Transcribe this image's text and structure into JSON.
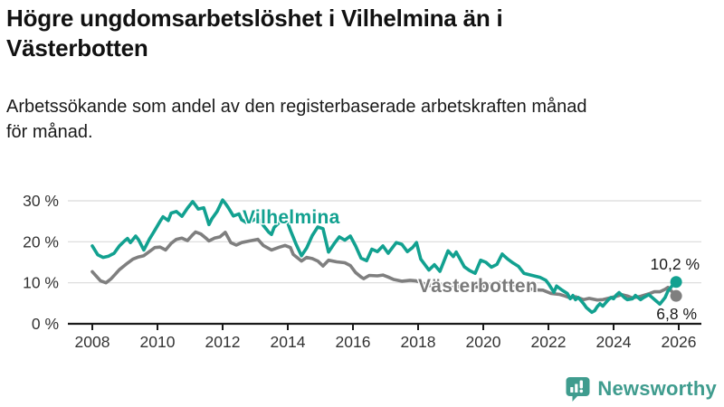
{
  "header": {
    "title_lines": [
      "Högre ungdomsarbetslöshet i Vilhelmina än i",
      "Västerbotten"
    ],
    "subtitle_lines": [
      "Arbetssökande som andel av den registerbaserade arbetskraften månad",
      "för månad."
    ]
  },
  "footer": {
    "brand": "Newsworthy",
    "brand_color": "#3f9c8e"
  },
  "chart_data": {
    "type": "line",
    "title": "Högre ungdomsarbetslöshet i Vilhelmina än i Västerbotten",
    "subtitle": "Arbetssökande som andel av den registerbaserade arbetskraften månad för månad.",
    "xlabel": "",
    "ylabel": "",
    "x_unit": "year",
    "y_unit": "%",
    "xlim": [
      2007.25,
      2026.7
    ],
    "ylim": [
      0,
      30
    ],
    "grid": "horizontal",
    "y_ticks": [
      {
        "value": 0,
        "label": "0 %"
      },
      {
        "value": 10,
        "label": "10 %"
      },
      {
        "value": 20,
        "label": "20 %"
      },
      {
        "value": 30,
        "label": "30 %"
      }
    ],
    "x_ticks": [
      {
        "value": 2008,
        "label": "2008"
      },
      {
        "value": 2010,
        "label": "2010"
      },
      {
        "value": 2012,
        "label": "2012"
      },
      {
        "value": 2014,
        "label": "2014"
      },
      {
        "value": 2016,
        "label": "2016"
      },
      {
        "value": 2018,
        "label": "2018"
      },
      {
        "value": 2020,
        "label": "2020"
      },
      {
        "value": 2022,
        "label": "2022"
      },
      {
        "value": 2024,
        "label": "2024"
      },
      {
        "value": 2026,
        "label": "2026"
      }
    ],
    "series": [
      {
        "id": "vasterbotten",
        "name": "Västerbotten",
        "color": "#7f7f7f",
        "label_color": "#7a7a7a",
        "end_label": "6,8 %",
        "end_value": 6.8,
        "points": [
          [
            2008.0,
            12.7
          ],
          [
            2008.25,
            10.5
          ],
          [
            2008.42,
            10.0
          ],
          [
            2008.58,
            11.0
          ],
          [
            2008.83,
            13.2
          ],
          [
            2009.08,
            14.8
          ],
          [
            2009.25,
            15.8
          ],
          [
            2009.42,
            16.3
          ],
          [
            2009.58,
            16.6
          ],
          [
            2009.75,
            17.6
          ],
          [
            2009.92,
            18.6
          ],
          [
            2010.08,
            18.7
          ],
          [
            2010.25,
            18.0
          ],
          [
            2010.42,
            19.6
          ],
          [
            2010.58,
            20.6
          ],
          [
            2010.75,
            20.9
          ],
          [
            2010.92,
            20.3
          ],
          [
            2011.08,
            21.7
          ],
          [
            2011.17,
            22.4
          ],
          [
            2011.33,
            21.9
          ],
          [
            2011.5,
            20.8
          ],
          [
            2011.58,
            20.2
          ],
          [
            2011.75,
            20.9
          ],
          [
            2011.92,
            21.2
          ],
          [
            2012.08,
            22.3
          ],
          [
            2012.25,
            19.8
          ],
          [
            2012.42,
            19.2
          ],
          [
            2012.58,
            19.8
          ],
          [
            2012.83,
            20.2
          ],
          [
            2013.08,
            20.6
          ],
          [
            2013.25,
            19.1
          ],
          [
            2013.5,
            18.0
          ],
          [
            2013.75,
            18.7
          ],
          [
            2013.92,
            19.1
          ],
          [
            2014.08,
            18.6
          ],
          [
            2014.17,
            16.9
          ],
          [
            2014.42,
            15.3
          ],
          [
            2014.58,
            16.2
          ],
          [
            2014.75,
            15.9
          ],
          [
            2014.92,
            15.3
          ],
          [
            2015.08,
            14.1
          ],
          [
            2015.25,
            15.5
          ],
          [
            2015.5,
            15.1
          ],
          [
            2015.75,
            14.9
          ],
          [
            2015.92,
            14.2
          ],
          [
            2016.08,
            12.5
          ],
          [
            2016.25,
            11.4
          ],
          [
            2016.33,
            11.0
          ],
          [
            2016.5,
            11.8
          ],
          [
            2016.75,
            11.7
          ],
          [
            2016.92,
            11.9
          ],
          [
            2017.08,
            11.4
          ],
          [
            2017.25,
            10.8
          ],
          [
            2017.5,
            10.4
          ],
          [
            2017.75,
            10.6
          ],
          [
            2017.92,
            10.5
          ],
          [
            2018.08,
            10.1
          ],
          [
            2018.33,
            9.3
          ],
          [
            2018.58,
            9.7
          ],
          [
            2018.83,
            9.5
          ],
          [
            2019.08,
            9.3
          ],
          [
            2019.33,
            8.9
          ],
          [
            2019.58,
            8.8
          ],
          [
            2019.83,
            9.0
          ],
          [
            2020.08,
            9.3
          ],
          [
            2020.33,
            9.9
          ],
          [
            2020.58,
            10.1
          ],
          [
            2020.83,
            9.7
          ],
          [
            2021.08,
            9.2
          ],
          [
            2021.33,
            8.7
          ],
          [
            2021.58,
            8.3
          ],
          [
            2021.83,
            8.2
          ],
          [
            2022.08,
            7.4
          ],
          [
            2022.33,
            7.2
          ],
          [
            2022.5,
            6.8
          ],
          [
            2022.67,
            6.3
          ],
          [
            2022.83,
            6.6
          ],
          [
            2023.08,
            5.9
          ],
          [
            2023.25,
            6.2
          ],
          [
            2023.5,
            5.8
          ],
          [
            2023.67,
            5.9
          ],
          [
            2023.83,
            6.2
          ],
          [
            2024.08,
            6.7
          ],
          [
            2024.25,
            7.1
          ],
          [
            2024.42,
            6.8
          ],
          [
            2024.58,
            6.3
          ],
          [
            2024.83,
            6.7
          ],
          [
            2025.08,
            7.3
          ],
          [
            2025.25,
            7.8
          ],
          [
            2025.42,
            7.8
          ],
          [
            2025.58,
            8.4
          ],
          [
            2025.67,
            8.9
          ],
          [
            2025.92,
            6.8
          ]
        ]
      },
      {
        "id": "vilhelmina",
        "name": "Vilhelmina",
        "color": "#12a190",
        "label_color": "#12a190",
        "end_label": "10,2 %",
        "end_value": 10.2,
        "points": [
          [
            2008.0,
            19.0
          ],
          [
            2008.17,
            16.8
          ],
          [
            2008.33,
            16.2
          ],
          [
            2008.5,
            16.5
          ],
          [
            2008.67,
            17.2
          ],
          [
            2008.83,
            19.0
          ],
          [
            2009.0,
            20.3
          ],
          [
            2009.08,
            20.8
          ],
          [
            2009.17,
            19.8
          ],
          [
            2009.33,
            21.4
          ],
          [
            2009.42,
            20.5
          ],
          [
            2009.58,
            18.0
          ],
          [
            2009.75,
            20.6
          ],
          [
            2009.92,
            22.8
          ],
          [
            2010.08,
            25.0
          ],
          [
            2010.17,
            26.1
          ],
          [
            2010.33,
            25.2
          ],
          [
            2010.42,
            27.0
          ],
          [
            2010.58,
            27.4
          ],
          [
            2010.75,
            26.2
          ],
          [
            2010.92,
            28.2
          ],
          [
            2011.08,
            29.8
          ],
          [
            2011.17,
            28.9
          ],
          [
            2011.25,
            28.0
          ],
          [
            2011.42,
            28.3
          ],
          [
            2011.5,
            26.3
          ],
          [
            2011.58,
            24.2
          ],
          [
            2011.67,
            25.6
          ],
          [
            2011.83,
            27.4
          ],
          [
            2012.0,
            30.2
          ],
          [
            2012.08,
            29.4
          ],
          [
            2012.17,
            28.4
          ],
          [
            2012.33,
            26.3
          ],
          [
            2012.5,
            26.8
          ],
          [
            2012.58,
            25.4
          ],
          [
            2012.75,
            24.6
          ],
          [
            2012.92,
            25.2
          ],
          [
            2013.08,
            25.8
          ],
          [
            2013.25,
            24.0
          ],
          [
            2013.42,
            22.3
          ],
          [
            2013.5,
            21.8
          ],
          [
            2013.58,
            23.5
          ],
          [
            2013.75,
            24.8
          ],
          [
            2013.92,
            25.4
          ],
          [
            2014.0,
            24.6
          ],
          [
            2014.08,
            22.8
          ],
          [
            2014.25,
            19.5
          ],
          [
            2014.42,
            16.6
          ],
          [
            2014.58,
            18.5
          ],
          [
            2014.75,
            21.5
          ],
          [
            2014.92,
            23.6
          ],
          [
            2015.08,
            23.2
          ],
          [
            2015.25,
            17.5
          ],
          [
            2015.42,
            19.5
          ],
          [
            2015.58,
            21.2
          ],
          [
            2015.75,
            20.4
          ],
          [
            2015.92,
            21.4
          ],
          [
            2016.08,
            19.0
          ],
          [
            2016.25,
            16.0
          ],
          [
            2016.42,
            15.4
          ],
          [
            2016.58,
            18.2
          ],
          [
            2016.75,
            17.6
          ],
          [
            2016.92,
            19.0
          ],
          [
            2017.08,
            17.2
          ],
          [
            2017.33,
            19.8
          ],
          [
            2017.5,
            19.4
          ],
          [
            2017.67,
            17.6
          ],
          [
            2017.83,
            18.6
          ],
          [
            2017.95,
            19.8
          ],
          [
            2018.08,
            15.8
          ],
          [
            2018.33,
            13.1
          ],
          [
            2018.5,
            14.4
          ],
          [
            2018.67,
            12.8
          ],
          [
            2018.92,
            17.8
          ],
          [
            2019.08,
            16.4
          ],
          [
            2019.17,
            17.5
          ],
          [
            2019.42,
            13.9
          ],
          [
            2019.58,
            13.0
          ],
          [
            2019.75,
            12.3
          ],
          [
            2019.92,
            15.5
          ],
          [
            2020.08,
            15.0
          ],
          [
            2020.25,
            13.8
          ],
          [
            2020.42,
            14.5
          ],
          [
            2020.58,
            17.0
          ],
          [
            2020.75,
            15.8
          ],
          [
            2020.92,
            14.8
          ],
          [
            2021.08,
            14.0
          ],
          [
            2021.25,
            12.3
          ],
          [
            2021.5,
            11.8
          ],
          [
            2021.75,
            11.3
          ],
          [
            2021.92,
            10.6
          ],
          [
            2022.0,
            9.8
          ],
          [
            2022.17,
            7.7
          ],
          [
            2022.25,
            9.2
          ],
          [
            2022.42,
            8.2
          ],
          [
            2022.58,
            7.4
          ],
          [
            2022.67,
            6.1
          ],
          [
            2022.75,
            6.9
          ],
          [
            2022.83,
            5.9
          ],
          [
            2022.92,
            6.4
          ],
          [
            2023.08,
            4.9
          ],
          [
            2023.17,
            3.9
          ],
          [
            2023.33,
            2.8
          ],
          [
            2023.42,
            3.2
          ],
          [
            2023.5,
            4.2
          ],
          [
            2023.58,
            4.9
          ],
          [
            2023.67,
            4.3
          ],
          [
            2023.83,
            5.8
          ],
          [
            2023.92,
            6.4
          ],
          [
            2024.0,
            6.1
          ],
          [
            2024.08,
            7.0
          ],
          [
            2024.17,
            7.6
          ],
          [
            2024.33,
            6.4
          ],
          [
            2024.42,
            5.9
          ],
          [
            2024.58,
            6.1
          ],
          [
            2024.67,
            6.9
          ],
          [
            2024.83,
            5.9
          ],
          [
            2024.92,
            6.4
          ],
          [
            2025.08,
            7.1
          ],
          [
            2025.17,
            6.5
          ],
          [
            2025.33,
            5.4
          ],
          [
            2025.42,
            4.8
          ],
          [
            2025.58,
            6.4
          ],
          [
            2025.67,
            8.0
          ],
          [
            2025.83,
            9.6
          ],
          [
            2025.92,
            10.2
          ]
        ]
      }
    ],
    "legend": "inline-labels",
    "colors": {
      "grid": "#d9d9d9",
      "axis": "#1a1a1a",
      "tick_text": "#333333",
      "annotation_text": "#1a1a1a"
    }
  }
}
